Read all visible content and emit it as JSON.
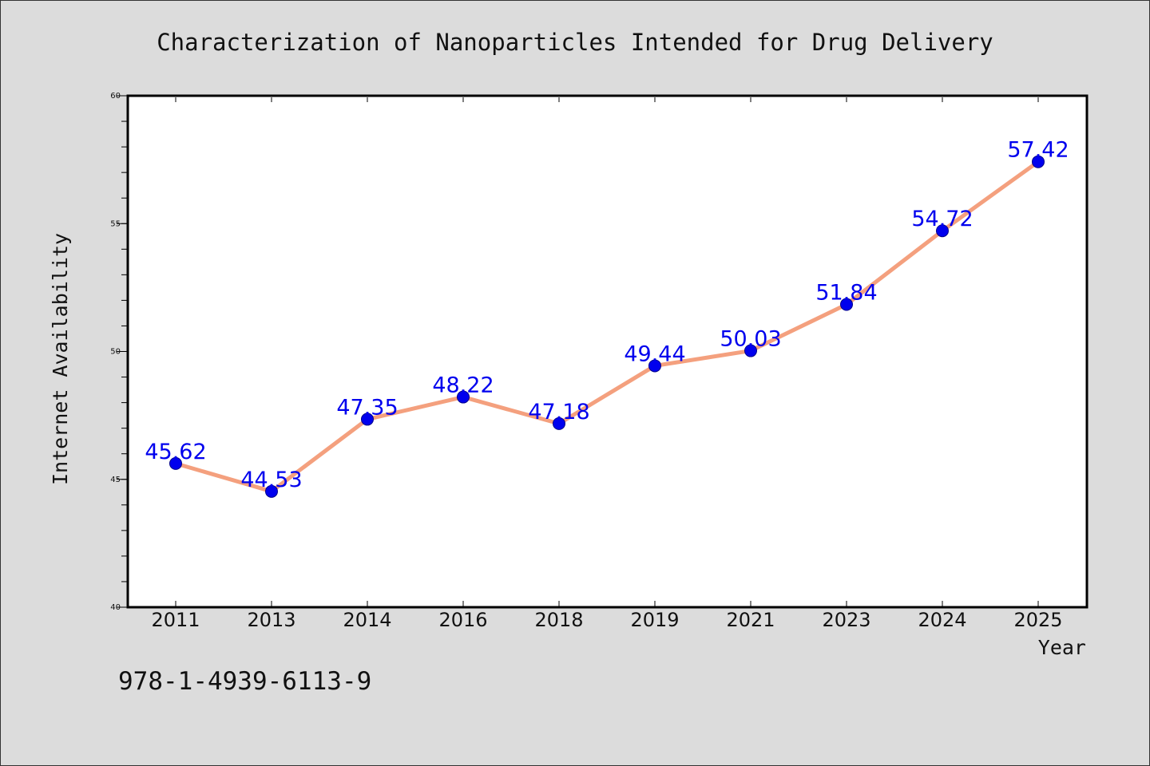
{
  "chart_data": {
    "type": "line",
    "title": "Characterization of Nanoparticles Intended for Drug Delivery",
    "xlabel": "Year",
    "ylabel": "Internet Availability",
    "categories": [
      "2011",
      "2013",
      "2014",
      "2016",
      "2018",
      "2019",
      "2021",
      "2023",
      "2024",
      "2025"
    ],
    "series": [
      {
        "values": [
          45.62,
          44.53,
          47.35,
          48.22,
          47.18,
          49.44,
          50.03,
          51.84,
          54.72,
          57.42
        ]
      }
    ],
    "data_labels": [
      "45.62",
      "44.53",
      "47.35",
      "48.22",
      "47.18",
      "49.44",
      "50.03",
      "51.84",
      "54.72",
      "57.42"
    ],
    "ylim": [
      40,
      60
    ],
    "yticks": [
      "40",
      "45",
      "50",
      "55",
      "60"
    ],
    "grid": false,
    "line_color": "#f4a07e",
    "marker_color": "#0000ee",
    "label_color": "#0000ee"
  },
  "annotation": "978-1-4939-6113-9"
}
